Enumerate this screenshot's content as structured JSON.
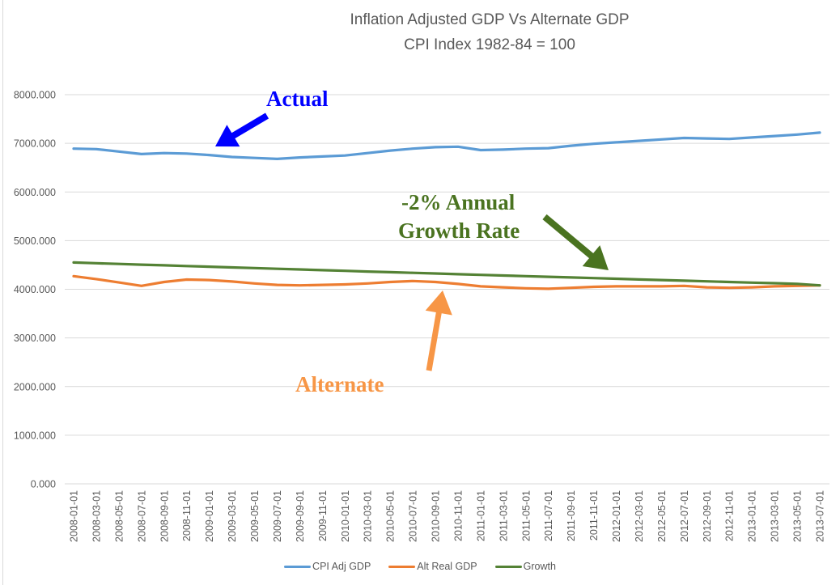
{
  "chart_data": {
    "type": "line",
    "title": "Inflation Adjusted GDP Vs Alternate GDP",
    "subtitle": "CPI Index 1982-84 = 100",
    "xlabel": "",
    "ylabel": "",
    "ylim": [
      0,
      8000
    ],
    "yticks": [
      "0.000",
      "1000.000",
      "2000.000",
      "3000.000",
      "4000.000",
      "5000.000",
      "6000.000",
      "7000.000",
      "8000.000"
    ],
    "grid": true,
    "legend_position": "bottom",
    "categories": [
      "2008-01-01",
      "2008-03-01",
      "2008-05-01",
      "2008-07-01",
      "2008-09-01",
      "2008-11-01",
      "2009-01-01",
      "2009-03-01",
      "2009-05-01",
      "2009-07-01",
      "2009-09-01",
      "2009-11-01",
      "2010-01-01",
      "2010-03-01",
      "2010-05-01",
      "2010-07-01",
      "2010-09-01",
      "2010-11-01",
      "2011-01-01",
      "2011-03-01",
      "2011-05-01",
      "2011-07-01",
      "2011-09-01",
      "2011-11-01",
      "2012-01-01",
      "2012-03-01",
      "2012-05-01",
      "2012-07-01",
      "2012-09-01",
      "2012-11-01",
      "2013-01-01",
      "2013-03-01",
      "2013-05-01",
      "2013-07-01"
    ],
    "series": [
      {
        "name": "CPI Adj GDP",
        "color": "#5b9bd5",
        "values": [
          6890,
          6880,
          6830,
          6780,
          6800,
          6790,
          6760,
          6720,
          6700,
          6680,
          6710,
          6730,
          6750,
          6800,
          6850,
          6890,
          6920,
          6930,
          6860,
          6870,
          6890,
          6900,
          6950,
          6990,
          7020,
          7050,
          7080,
          7110,
          7100,
          7090,
          7120,
          7150,
          7180,
          7220
        ]
      },
      {
        "name": "Alt Real GDP",
        "color": "#ed7d31",
        "values": [
          4270,
          4210,
          4140,
          4070,
          4150,
          4200,
          4190,
          4160,
          4120,
          4090,
          4080,
          4090,
          4100,
          4120,
          4150,
          4170,
          4150,
          4110,
          4060,
          4040,
          4020,
          4010,
          4030,
          4050,
          4060,
          4060,
          4060,
          4070,
          4040,
          4030,
          4040,
          4060,
          4070,
          4080
        ]
      },
      {
        "name": "Growth",
        "color": "#548235",
        "values": [
          4550,
          4535,
          4521,
          4506,
          4492,
          4478,
          4464,
          4449,
          4435,
          4421,
          4407,
          4393,
          4379,
          4365,
          4351,
          4337,
          4324,
          4310,
          4296,
          4283,
          4269,
          4256,
          4242,
          4229,
          4216,
          4202,
          4189,
          4176,
          4163,
          4150,
          4137,
          4124,
          4111,
          4080
        ]
      }
    ],
    "annotations": [
      {
        "text": "Actual",
        "color": "#0000ff",
        "points_to": "CPI Adj GDP"
      },
      {
        "text": "-2% Annual",
        "text2": "Growth Rate",
        "color": "#4a7320",
        "points_to": "Growth"
      },
      {
        "text": "Alternate",
        "color": "#f79646",
        "points_to": "Alt Real GDP"
      }
    ]
  }
}
